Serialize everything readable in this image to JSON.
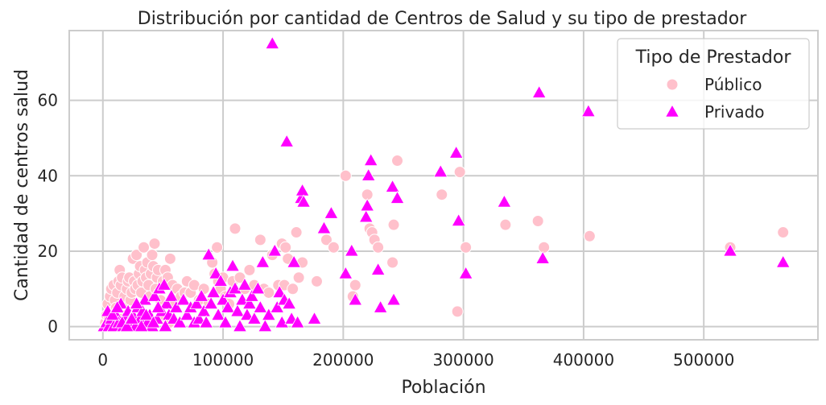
{
  "chart_data": {
    "type": "scatter",
    "title": "Distribución por cantidad de Centros de Salud y su tipo de prestador",
    "xlabel": "Población",
    "ylabel": "Cantidad de centros salud",
    "xlim": [
      -28000,
      595000
    ],
    "ylim": [
      -3.5,
      78.5
    ],
    "xticks": [
      0,
      100000,
      200000,
      300000,
      400000,
      500000
    ],
    "xtick_labels": [
      "0",
      "100000",
      "200000",
      "300000",
      "400000",
      "500000"
    ],
    "yticks": [
      0,
      20,
      40,
      60
    ],
    "ytick_labels": [
      "0",
      "20",
      "40",
      "60"
    ],
    "grid": true,
    "legend": {
      "title": "Tipo de Prestador",
      "position": "top-right"
    },
    "series": [
      {
        "name": "Público",
        "marker": "circle",
        "color": "#ffc0cb",
        "points": [
          [
            2000,
            1
          ],
          [
            3000,
            3
          ],
          [
            4000,
            6
          ],
          [
            5000,
            2
          ],
          [
            6000,
            8
          ],
          [
            7000,
            10
          ],
          [
            8000,
            4
          ],
          [
            9000,
            11
          ],
          [
            10000,
            7
          ],
          [
            11000,
            5
          ],
          [
            12000,
            9
          ],
          [
            13000,
            12
          ],
          [
            14000,
            15
          ],
          [
            15000,
            11
          ],
          [
            16000,
            13
          ],
          [
            17000,
            6
          ],
          [
            18000,
            8
          ],
          [
            19000,
            3
          ],
          [
            20000,
            10
          ],
          [
            21000,
            12
          ],
          [
            22000,
            13
          ],
          [
            23000,
            7
          ],
          [
            24000,
            9
          ],
          [
            25000,
            18
          ],
          [
            26000,
            12
          ],
          [
            27000,
            10
          ],
          [
            28000,
            19
          ],
          [
            29000,
            11
          ],
          [
            30000,
            14
          ],
          [
            31000,
            16
          ],
          [
            32000,
            9
          ],
          [
            33000,
            12
          ],
          [
            34000,
            21
          ],
          [
            35000,
            15
          ],
          [
            36000,
            13
          ],
          [
            37000,
            17
          ],
          [
            38000,
            11
          ],
          [
            39000,
            8
          ],
          [
            40000,
            14
          ],
          [
            41000,
            19
          ],
          [
            42000,
            16
          ],
          [
            43000,
            22
          ],
          [
            44000,
            10
          ],
          [
            45000,
            13
          ],
          [
            46000,
            15
          ],
          [
            48000,
            7
          ],
          [
            50000,
            12
          ],
          [
            52000,
            15
          ],
          [
            54000,
            13
          ],
          [
            56000,
            18
          ],
          [
            58000,
            11
          ],
          [
            60000,
            6
          ],
          [
            62000,
            10
          ],
          [
            65000,
            8
          ],
          [
            68000,
            9
          ],
          [
            70000,
            12
          ],
          [
            73000,
            9
          ],
          [
            76000,
            11
          ],
          [
            80000,
            7
          ],
          [
            84000,
            10
          ],
          [
            88000,
            6
          ],
          [
            91000,
            17
          ],
          [
            93000,
            14
          ],
          [
            95000,
            21
          ],
          [
            96000,
            12
          ],
          [
            98000,
            10
          ],
          [
            100000,
            13
          ],
          [
            102000,
            8
          ],
          [
            105000,
            6
          ],
          [
            108000,
            12
          ],
          [
            110000,
            26
          ],
          [
            114000,
            13
          ],
          [
            118000,
            10
          ],
          [
            122000,
            15
          ],
          [
            126000,
            11
          ],
          [
            131000,
            23
          ],
          [
            134000,
            10
          ],
          [
            138000,
            9
          ],
          [
            141000,
            19
          ],
          [
            146000,
            11
          ],
          [
            149000,
            22
          ],
          [
            151000,
            11
          ],
          [
            152000,
            21
          ],
          [
            154000,
            18
          ],
          [
            158000,
            10
          ],
          [
            161000,
            25
          ],
          [
            163000,
            13
          ],
          [
            166000,
            17
          ],
          [
            178000,
            12
          ],
          [
            186000,
            23
          ],
          [
            192000,
            21
          ],
          [
            202000,
            40
          ],
          [
            208000,
            8
          ],
          [
            210000,
            11
          ],
          [
            220000,
            35
          ],
          [
            222000,
            26
          ],
          [
            224000,
            25
          ],
          [
            226000,
            23
          ],
          [
            229000,
            21
          ],
          [
            241000,
            17
          ],
          [
            242000,
            27
          ],
          [
            245000,
            44
          ],
          [
            282000,
            35
          ],
          [
            295000,
            4
          ],
          [
            297000,
            41
          ],
          [
            302000,
            21
          ],
          [
            335000,
            27
          ],
          [
            362000,
            28
          ],
          [
            367000,
            21
          ],
          [
            405000,
            24
          ],
          [
            522000,
            21
          ],
          [
            566000,
            25
          ],
          [
            3000,
            0
          ],
          [
            6000,
            1
          ],
          [
            9000,
            0
          ],
          [
            14000,
            2
          ],
          [
            18000,
            1
          ],
          [
            22000,
            3
          ],
          [
            27000,
            0
          ],
          [
            31000,
            2
          ],
          [
            36000,
            1
          ],
          [
            40000,
            0
          ],
          [
            47000,
            2
          ],
          [
            55000,
            1
          ]
        ]
      },
      {
        "name": "Privado",
        "marker": "triangle",
        "color": "#ff00ff",
        "points": [
          [
            1000,
            0
          ],
          [
            3000,
            1
          ],
          [
            5000,
            0
          ],
          [
            7000,
            2
          ],
          [
            9000,
            0
          ],
          [
            11000,
            3
          ],
          [
            13000,
            1
          ],
          [
            15000,
            6
          ],
          [
            17000,
            0
          ],
          [
            19000,
            2
          ],
          [
            21000,
            4
          ],
          [
            23000,
            1
          ],
          [
            25000,
            3
          ],
          [
            27000,
            0
          ],
          [
            29000,
            5
          ],
          [
            31000,
            2
          ],
          [
            33000,
            4
          ],
          [
            35000,
            7
          ],
          [
            37000,
            1
          ],
          [
            39000,
            3
          ],
          [
            41000,
            0
          ],
          [
            43000,
            8
          ],
          [
            45000,
            2
          ],
          [
            47000,
            10
          ],
          [
            49000,
            4
          ],
          [
            51000,
            11
          ],
          [
            53000,
            6
          ],
          [
            55000,
            3
          ],
          [
            57000,
            8
          ],
          [
            59000,
            2
          ],
          [
            61000,
            5
          ],
          [
            64000,
            1
          ],
          [
            67000,
            7
          ],
          [
            70000,
            3
          ],
          [
            73000,
            5
          ],
          [
            76000,
            1
          ],
          [
            78000,
            6
          ],
          [
            80000,
            2
          ],
          [
            82000,
            8
          ],
          [
            84000,
            4
          ],
          [
            86000,
            1
          ],
          [
            88000,
            19
          ],
          [
            90000,
            6
          ],
          [
            92000,
            9
          ],
          [
            94000,
            14
          ],
          [
            96000,
            3
          ],
          [
            98000,
            12
          ],
          [
            100000,
            7
          ],
          [
            102000,
            1
          ],
          [
            104000,
            5
          ],
          [
            106000,
            9
          ],
          [
            108000,
            16
          ],
          [
            110000,
            10
          ],
          [
            112000,
            4
          ],
          [
            114000,
            0
          ],
          [
            116000,
            7
          ],
          [
            118000,
            11
          ],
          [
            120000,
            3
          ],
          [
            122000,
            6
          ],
          [
            124000,
            8
          ],
          [
            126000,
            2
          ],
          [
            129000,
            10
          ],
          [
            131000,
            5
          ],
          [
            133000,
            17
          ],
          [
            135000,
            0
          ],
          [
            138000,
            3
          ],
          [
            141000,
            75
          ],
          [
            143000,
            20
          ],
          [
            145000,
            5
          ],
          [
            147000,
            9
          ],
          [
            149000,
            1
          ],
          [
            151000,
            7
          ],
          [
            153000,
            49
          ],
          [
            155000,
            6
          ],
          [
            157000,
            2
          ],
          [
            159000,
            17
          ],
          [
            162000,
            1
          ],
          [
            165000,
            34
          ],
          [
            166000,
            36
          ],
          [
            167000,
            33
          ],
          [
            176000,
            2
          ],
          [
            184000,
            26
          ],
          [
            190000,
            30
          ],
          [
            202000,
            14
          ],
          [
            207000,
            20
          ],
          [
            210000,
            7
          ],
          [
            219000,
            29
          ],
          [
            220000,
            32
          ],
          [
            221000,
            40
          ],
          [
            223000,
            44
          ],
          [
            229000,
            15
          ],
          [
            231000,
            5
          ],
          [
            241000,
            37
          ],
          [
            242000,
            7
          ],
          [
            245000,
            34
          ],
          [
            281000,
            41
          ],
          [
            294000,
            46
          ],
          [
            296000,
            28
          ],
          [
            302000,
            14
          ],
          [
            334000,
            33
          ],
          [
            363000,
            62
          ],
          [
            366000,
            18
          ],
          [
            404000,
            57
          ],
          [
            522000,
            20
          ],
          [
            566000,
            17
          ],
          [
            4000,
            4
          ],
          [
            8000,
            3
          ],
          [
            12000,
            5
          ],
          [
            16000,
            1
          ],
          [
            20000,
            0
          ],
          [
            24000,
            2
          ],
          [
            28000,
            6
          ],
          [
            32000,
            0
          ],
          [
            36000,
            3
          ],
          [
            42000,
            1
          ],
          [
            46000,
            5
          ],
          [
            52000,
            0
          ]
        ]
      }
    ]
  }
}
